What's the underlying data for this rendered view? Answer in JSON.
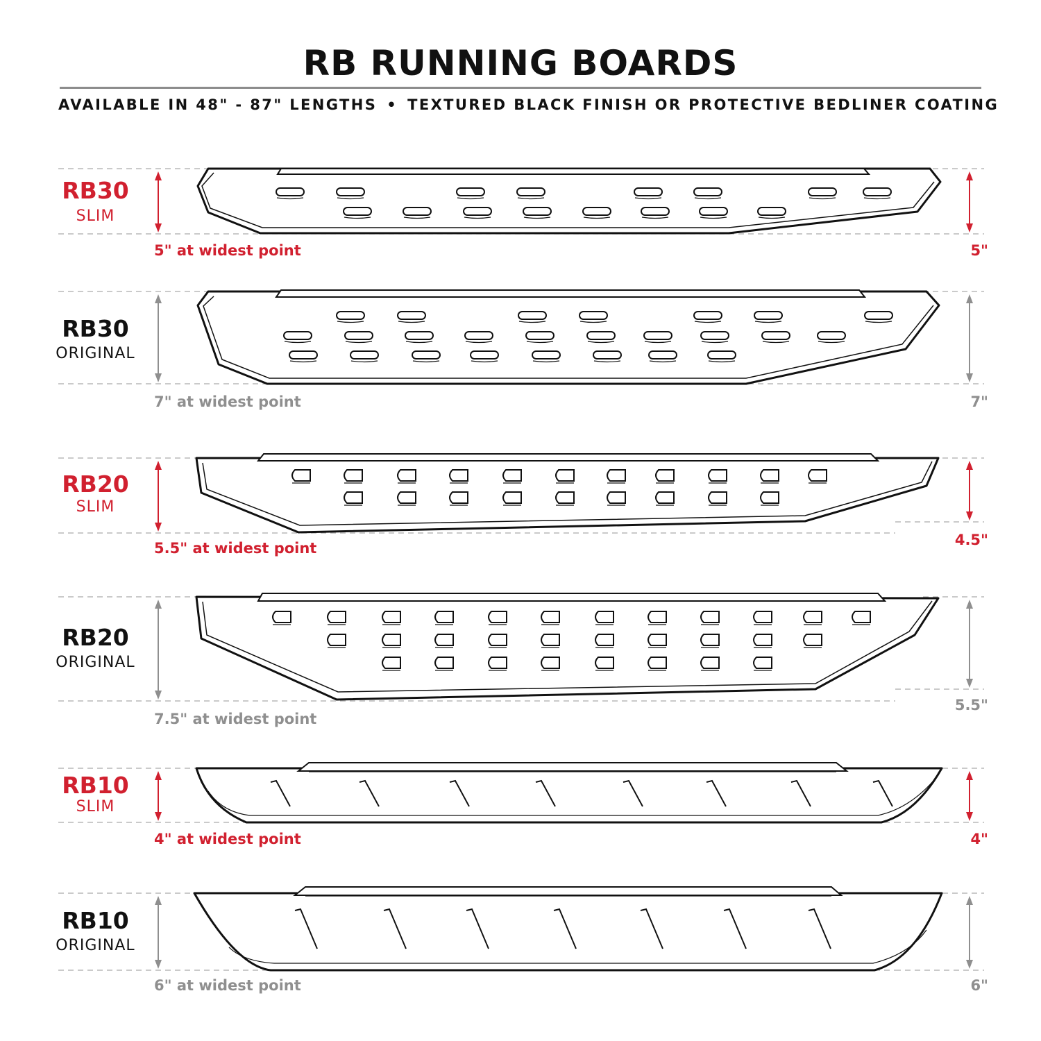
{
  "header": {
    "title": "RB RUNNING BOARDS",
    "subtitle_left": "AVAILABLE IN 48\" - 87\" LENGTHS",
    "subtitle_separator": "•",
    "subtitle_right": "TEXTURED BLACK FINISH OR PROTECTIVE BEDLINER COATING"
  },
  "colors": {
    "accent_red": "#d1202f",
    "gray": "#8f8f8f",
    "black": "#111111"
  },
  "boards": [
    {
      "model": "RB30",
      "variant": "SLIM",
      "widest": "5\" at widest point",
      "right_dim": "5\"",
      "highlight": true
    },
    {
      "model": "RB30",
      "variant": "ORIGINAL",
      "widest": "7\" at widest point",
      "right_dim": "7\"",
      "highlight": false
    },
    {
      "model": "RB20",
      "variant": "SLIM",
      "widest": "5.5\" at widest point",
      "right_dim": "4.5\"",
      "highlight": true
    },
    {
      "model": "RB20",
      "variant": "ORIGINAL",
      "widest": "7.5\" at widest point",
      "right_dim": "5.5\"",
      "highlight": false
    },
    {
      "model": "RB10",
      "variant": "SLIM",
      "widest": "4\" at widest point",
      "right_dim": "4\"",
      "highlight": true
    },
    {
      "model": "RB10",
      "variant": "ORIGINAL",
      "widest": "6\" at widest point",
      "right_dim": "6\"",
      "highlight": false
    }
  ]
}
